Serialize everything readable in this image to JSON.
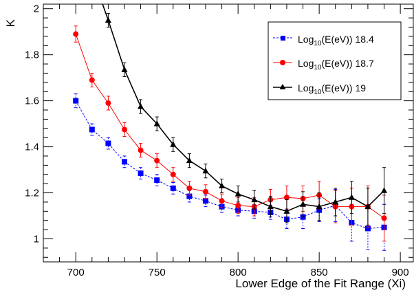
{
  "chart_data": {
    "type": "line",
    "xlabel": "Lower Edge of the Fit Range (Xi)",
    "ylabel": "K",
    "xlim": [
      680,
      908
    ],
    "ylim": [
      0.9,
      2.02
    ],
    "x_ticks": [
      700,
      750,
      800,
      850,
      900
    ],
    "y_ticks": [
      1,
      1.2,
      1.4,
      1.6,
      1.8,
      2
    ],
    "grid": false,
    "legend_position": "top-right",
    "series": [
      {
        "name_prefix": "Log",
        "name_subscript": "10",
        "name_suffix": "(E(eV)) 18.4",
        "color": "#0000ff",
        "marker": "square",
        "line_style": "dashed",
        "x": [
          700,
          710,
          720,
          730,
          740,
          750,
          760,
          770,
          780,
          790,
          800,
          810,
          820,
          830,
          840,
          850,
          860,
          870,
          880,
          890
        ],
        "y": [
          1.6,
          1.475,
          1.415,
          1.335,
          1.285,
          1.255,
          1.22,
          1.185,
          1.165,
          1.14,
          1.125,
          1.12,
          1.115,
          1.085,
          1.095,
          1.125,
          1.145,
          1.07,
          1.045,
          1.05
        ],
        "err": [
          0.03,
          0.025,
          0.025,
          0.025,
          0.025,
          0.025,
          0.025,
          0.025,
          0.025,
          0.025,
          0.025,
          0.03,
          0.03,
          0.04,
          0.05,
          0.05,
          0.07,
          0.08,
          0.09,
          0.1
        ]
      },
      {
        "name_prefix": "Log",
        "name_subscript": "10",
        "name_suffix": "(E(eV)) 18.7",
        "color": "#ff0000",
        "marker": "circle",
        "line_style": "solid",
        "x": [
          700,
          710,
          720,
          730,
          740,
          750,
          760,
          770,
          780,
          790,
          800,
          810,
          820,
          830,
          840,
          850,
          860,
          870,
          880,
          890
        ],
        "y": [
          1.89,
          1.69,
          1.59,
          1.475,
          1.385,
          1.34,
          1.28,
          1.22,
          1.205,
          1.165,
          1.145,
          1.14,
          1.17,
          1.18,
          1.175,
          1.19,
          1.14,
          1.14,
          1.14,
          1.09
        ],
        "err": [
          0.035,
          0.03,
          0.03,
          0.03,
          0.03,
          0.03,
          0.03,
          0.03,
          0.03,
          0.03,
          0.035,
          0.04,
          0.045,
          0.05,
          0.055,
          0.06,
          0.07,
          0.08,
          0.09,
          0.1
        ]
      },
      {
        "name_prefix": "Log",
        "name_subscript": "10",
        "name_suffix": "(E(eV)) 19",
        "color": "#000000",
        "marker": "triangle",
        "line_style": "solid",
        "x": [
          715,
          720,
          730,
          740,
          750,
          760,
          770,
          780,
          790,
          800,
          810,
          820,
          830,
          840,
          850,
          860,
          870,
          880,
          890
        ],
        "y": [
          2.05,
          1.95,
          1.735,
          1.575,
          1.5,
          1.41,
          1.34,
          1.295,
          1.23,
          1.195,
          1.17,
          1.14,
          1.12,
          1.15,
          1.14,
          1.16,
          1.18,
          1.14,
          1.21
        ],
        "err": [
          0.03,
          0.03,
          0.03,
          0.03,
          0.03,
          0.03,
          0.03,
          0.03,
          0.03,
          0.035,
          0.04,
          0.045,
          0.05,
          0.055,
          0.06,
          0.06,
          0.07,
          0.08,
          0.1
        ]
      }
    ]
  }
}
